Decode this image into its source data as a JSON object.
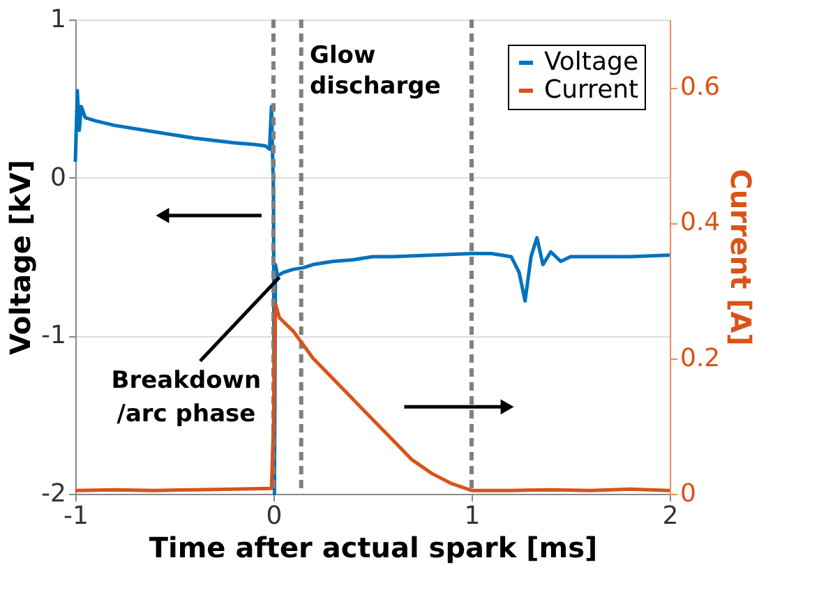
{
  "chart_data": {
    "type": "line",
    "xlabel": "Time after actual spark [ms]",
    "ylabel": "Voltage [kV]",
    "y2label": "Current [A]",
    "xlim": [
      -1,
      2
    ],
    "xticks": [
      -1,
      0,
      1,
      2
    ],
    "ylim": [
      -2,
      1
    ],
    "yticks": [
      -2,
      -1,
      0,
      1
    ],
    "y2lim": [
      0,
      0.7
    ],
    "y2ticks": [
      0,
      0.2,
      0.4,
      0.6
    ],
    "grid": "y",
    "legend": "top right",
    "line_style": "solid",
    "marker": "none",
    "series": [
      {
        "name": "Voltage",
        "color": "#0072bd",
        "x": [
          -1,
          -0.99,
          -0.98,
          -0.97,
          -0.95,
          -0.9,
          -0.8,
          -0.6,
          -0.4,
          -0.2,
          -0.1,
          -0.04,
          -0.02,
          -0.01,
          0,
          0.005,
          0.01,
          0.02,
          0.05,
          0.1,
          0.15,
          0.2,
          0.3,
          0.4,
          0.5,
          0.6,
          0.8,
          1.0,
          1.1,
          1.2,
          1.24,
          1.27,
          1.3,
          1.33,
          1.36,
          1.4,
          1.45,
          1.5,
          1.6,
          1.8,
          2.0
        ],
        "values": [
          0.1,
          0.55,
          0.3,
          0.45,
          0.38,
          0.36,
          0.33,
          0.29,
          0.25,
          0.22,
          0.21,
          0.2,
          0.18,
          0.45,
          -0.1,
          -2,
          -0.55,
          -0.62,
          -0.6,
          -0.58,
          -0.57,
          -0.55,
          -0.53,
          -0.52,
          -0.5,
          -0.5,
          -0.49,
          -0.48,
          -0.48,
          -0.5,
          -0.6,
          -0.78,
          -0.5,
          -0.38,
          -0.55,
          -0.47,
          -0.53,
          -0.5,
          -0.5,
          -0.5,
          -0.49
        ]
      },
      {
        "name": "Current",
        "color": "#d95319",
        "axis": "y2",
        "x": [
          -1,
          -0.8,
          -0.6,
          -0.4,
          -0.2,
          -0.01,
          0,
          0.01,
          0.03,
          0.1,
          0.15,
          0.2,
          0.3,
          0.4,
          0.5,
          0.6,
          0.7,
          0.8,
          0.9,
          1.0,
          1.2,
          1.4,
          1.6,
          1.8,
          2.0
        ],
        "values": [
          0.005,
          0.006,
          0.005,
          0.006,
          0.007,
          0.008,
          0.1,
          0.28,
          0.26,
          0.24,
          0.22,
          0.2,
          0.17,
          0.14,
          0.11,
          0.08,
          0.05,
          0.03,
          0.015,
          0.005,
          0.005,
          0.006,
          0.005,
          0.007,
          0.005
        ]
      }
    ],
    "ref_lines": [
      {
        "axis": "x",
        "value": 0,
        "color": "#808080",
        "line_style": "dashed"
      },
      {
        "axis": "x",
        "value": 0.14,
        "color": "#808080",
        "line_style": "dashed"
      },
      {
        "axis": "x",
        "value": 1,
        "color": "#808080",
        "line_style": "dashed"
      }
    ],
    "annotations": [
      "Glow discharge",
      {
        "text": "Breakdown /arc phase",
        "x": 0.03,
        "y": -0.63
      }
    ]
  }
}
